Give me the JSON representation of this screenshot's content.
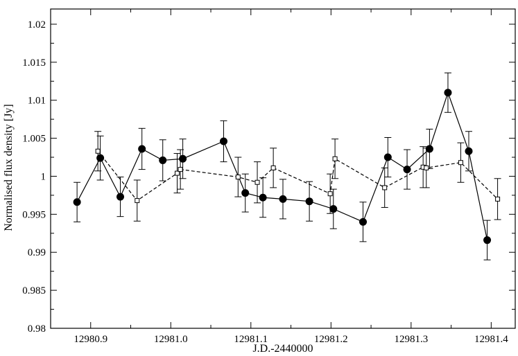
{
  "chart_data": {
    "type": "scatter",
    "title": "",
    "xlabel": "J.D.-2440000",
    "ylabel": "Normalised flux density [Jy]",
    "xlim": [
      12980.85,
      12981.43
    ],
    "ylim": [
      0.98,
      1.022
    ],
    "grid": false,
    "legend": "none",
    "x_ticks": [
      12980.9,
      12981.0,
      12981.1,
      12981.2,
      12981.3,
      12981.4
    ],
    "x_tick_labels": [
      "12980.9",
      "12981.0",
      "12981.1",
      "12981.2",
      "12981.3",
      "12981.4"
    ],
    "y_ticks": [
      0.98,
      0.985,
      0.99,
      0.995,
      1.0,
      1.005,
      1.01,
      1.015,
      1.02
    ],
    "y_tick_labels": [
      "0.98",
      "0.985",
      "0.99",
      "0.995",
      "1",
      "1.005",
      "1.01",
      "1.015",
      "1.02"
    ],
    "series": [
      {
        "marker": "filled-circle",
        "line": "solid",
        "color": "#000000",
        "x": [
          12980.883,
          12980.912,
          12980.937,
          12980.964,
          12980.99,
          12981.015,
          12981.066,
          12981.093,
          12981.115,
          12981.14,
          12981.173,
          12981.203,
          12981.24,
          12981.271,
          12981.295,
          12981.323,
          12981.346,
          12981.372,
          12981.395
        ],
        "y": [
          0.9966,
          1.0024,
          0.9973,
          1.0036,
          1.0021,
          1.0023,
          1.0046,
          0.9978,
          0.9972,
          0.997,
          0.9967,
          0.9957,
          0.994,
          1.0025,
          1.0009,
          1.0036,
          1.011,
          1.0033,
          0.9916
        ],
        "yerr": [
          0.0026,
          0.0029,
          0.0026,
          0.0027,
          0.0027,
          0.0026,
          0.0027,
          0.0025,
          0.0026,
          0.0026,
          0.0026,
          0.0026,
          0.0026,
          0.0026,
          0.0026,
          0.0026,
          0.0026,
          0.0026,
          0.0026
        ]
      },
      {
        "marker": "open-square",
        "line": "dashed",
        "color": "#000000",
        "x": [
          12980.909,
          12980.958,
          12981.008,
          12981.012,
          12981.084,
          12981.108,
          12981.128,
          12981.199,
          12981.205,
          12981.267,
          12981.315,
          12981.319,
          12981.362,
          12981.408
        ],
        "y": [
          1.0033,
          0.9968,
          1.0004,
          1.0009,
          0.9999,
          0.9992,
          1.0011,
          0.9977,
          1.0023,
          0.9985,
          1.0012,
          1.0011,
          1.0018,
          0.997
        ],
        "yerr": [
          0.0026,
          0.0027,
          0.0026,
          0.0026,
          0.0026,
          0.0027,
          0.0026,
          0.0026,
          0.0026,
          0.0026,
          0.0027,
          0.0026,
          0.0026,
          0.0027
        ]
      }
    ]
  }
}
